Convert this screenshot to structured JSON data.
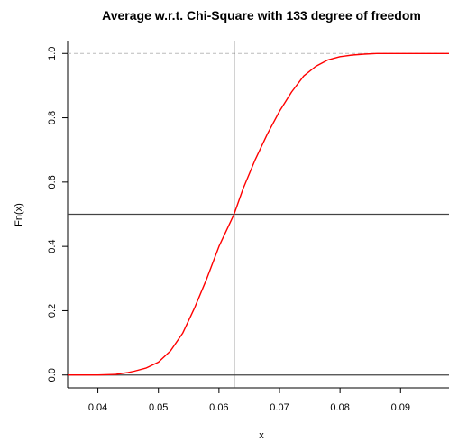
{
  "chart_data": {
    "type": "line",
    "title": "Average w.r.t. Chi-Square with  133  degree of freedom",
    "xlabel": "x",
    "ylabel": "Fn(x)",
    "xlim": [
      0.035,
      0.098
    ],
    "ylim": [
      -0.04,
      1.04
    ],
    "x_ticks": [
      0.04,
      0.05,
      0.06,
      0.07,
      0.08,
      0.09
    ],
    "x_tick_labels": [
      "0.04",
      "0.05",
      "0.06",
      "0.07",
      "0.08",
      "0.09"
    ],
    "y_ticks": [
      0.0,
      0.2,
      0.4,
      0.6,
      0.8,
      1.0
    ],
    "y_tick_labels": [
      "0.0",
      "0.2",
      "0.4",
      "0.6",
      "0.8",
      "1.0"
    ],
    "reference_lines": {
      "horizontal_solid": [
        0.0,
        0.5
      ],
      "horizontal_dashed": [
        1.0
      ],
      "vertical_solid": [
        0.0625
      ]
    },
    "series": [
      {
        "color": "#ff0000",
        "x": [
          0.035,
          0.04,
          0.043,
          0.045,
          0.046,
          0.048,
          0.05,
          0.052,
          0.054,
          0.056,
          0.058,
          0.06,
          0.0625,
          0.064,
          0.066,
          0.068,
          0.07,
          0.072,
          0.074,
          0.076,
          0.078,
          0.08,
          0.082,
          0.084,
          0.086,
          0.09,
          0.098
        ],
        "y": [
          0.0,
          0.0,
          0.002,
          0.008,
          0.012,
          0.022,
          0.04,
          0.075,
          0.13,
          0.21,
          0.3,
          0.4,
          0.5,
          0.58,
          0.67,
          0.75,
          0.82,
          0.88,
          0.93,
          0.96,
          0.98,
          0.99,
          0.995,
          0.998,
          1.0,
          1.0,
          1.0
        ]
      }
    ]
  }
}
